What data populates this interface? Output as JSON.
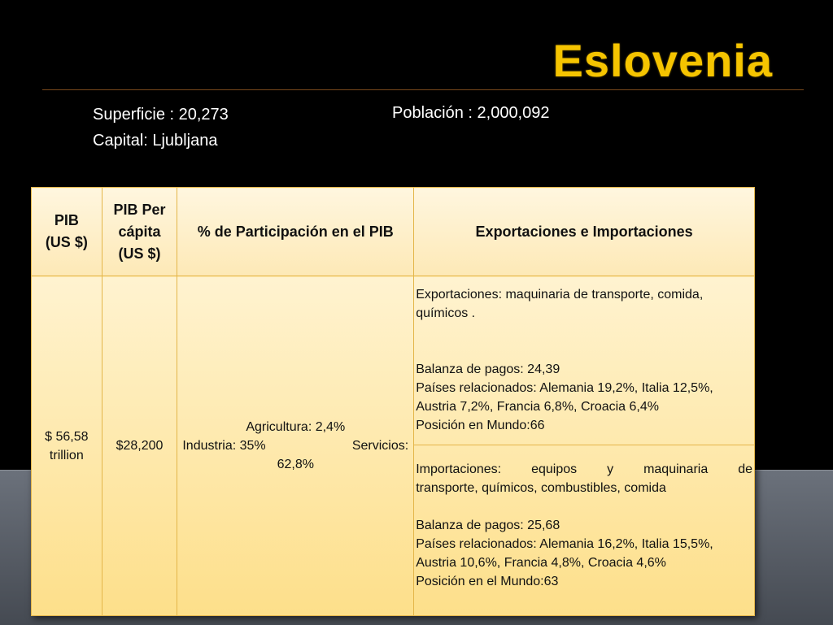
{
  "title": "Eslovenia",
  "info": {
    "superficie": "Superficie : 20,273",
    "capital": "Capital: Ljubljana",
    "poblacion": "Población : 2,000,092"
  },
  "table": {
    "headers": {
      "pib_line1": "PIB",
      "pib_line2": "(US $)",
      "percapita_line1": "PIB Per",
      "percapita_line2": "cápita",
      "percapita_line3": "(US $)",
      "participacion": "% de Participación en el PIB",
      "comercio": "Exportaciones e Importaciones"
    },
    "pib_line1": "$ 56,58",
    "pib_line2": "trillion",
    "per_capita": "$28,200",
    "participacion": {
      "agricultura": "Agricultura: 2,4%",
      "industria": "Industria: 35%",
      "servicios_label": "Servicios:",
      "servicios_value": "62,8%"
    },
    "exportaciones": {
      "line1": "Exportaciones: maquinaria de transporte, comida,",
      "line2": "químicos .",
      "balanza": "Balanza de pagos: 24,39",
      "paises1": "Países relacionados:  Alemania 19,2%, Italia 12,5%,",
      "paises2": "Austria 7,2%, Francia 6,8%, Croacia 6,4%",
      "posicion": "Posición en Mundo:66"
    },
    "importaciones": {
      "line1a": "Importaciones:",
      "line1b": "equipos",
      "line1c": "y",
      "line1d": "maquinaria",
      "line1e": "de",
      "line2": "transporte, químicos, combustibles, comida",
      "balanza": "Balanza de pagos: 25,68",
      "paises1": "Países relacionados: Alemania 16,2%, Italia 15,5%,",
      "paises2": "Austria 10,6%, Francia 4,8%, Croacia 4,6%",
      "posicion": "Posición en el Mundo:63"
    }
  }
}
